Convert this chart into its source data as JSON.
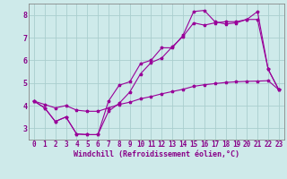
{
  "xlabel": "Windchill (Refroidissement éolien,°C)",
  "background_color": "#ceeaea",
  "grid_color": "#aacece",
  "line_color": "#990099",
  "line1_x": [
    0,
    1,
    2,
    3,
    4,
    5,
    6,
    7,
    8,
    9,
    10,
    11,
    12,
    13,
    14,
    15,
    16,
    17,
    18,
    19,
    20,
    21,
    22,
    23
  ],
  "line1_y": [
    4.2,
    3.9,
    3.3,
    3.5,
    2.75,
    2.72,
    2.72,
    4.2,
    4.9,
    5.05,
    5.85,
    6.0,
    6.55,
    6.55,
    7.1,
    8.15,
    8.2,
    7.7,
    7.6,
    7.65,
    7.8,
    8.15,
    5.6,
    4.7
  ],
  "line2_x": [
    0,
    1,
    2,
    3,
    4,
    5,
    6,
    7,
    8,
    9,
    10,
    11,
    12,
    13,
    14,
    15,
    16,
    17,
    18,
    19,
    20,
    21,
    22,
    23
  ],
  "line2_y": [
    4.2,
    3.9,
    3.3,
    3.5,
    2.75,
    2.72,
    2.72,
    3.75,
    4.1,
    4.6,
    5.4,
    5.9,
    6.1,
    6.6,
    7.05,
    7.65,
    7.55,
    7.65,
    7.7,
    7.7,
    7.8,
    7.8,
    5.6,
    4.7
  ],
  "line3_x": [
    0,
    1,
    2,
    3,
    4,
    5,
    6,
    7,
    8,
    9,
    10,
    11,
    12,
    13,
    14,
    15,
    16,
    17,
    18,
    19,
    20,
    21,
    22,
    23
  ],
  "line3_y": [
    4.2,
    4.05,
    3.9,
    4.0,
    3.8,
    3.75,
    3.75,
    3.9,
    4.05,
    4.15,
    4.3,
    4.4,
    4.52,
    4.62,
    4.72,
    4.85,
    4.92,
    4.97,
    5.02,
    5.05,
    5.07,
    5.08,
    5.1,
    4.7
  ],
  "xlim": [
    -0.5,
    23.5
  ],
  "ylim": [
    2.5,
    8.5
  ],
  "yticks": [
    3,
    4,
    5,
    6,
    7,
    8
  ],
  "xticks": [
    0,
    1,
    2,
    3,
    4,
    5,
    6,
    7,
    8,
    9,
    10,
    11,
    12,
    13,
    14,
    15,
    16,
    17,
    18,
    19,
    20,
    21,
    22,
    23
  ],
  "marker": "*",
  "markersize": 2.5,
  "linewidth": 0.8,
  "tick_fontsize": 5.5,
  "xlabel_fontsize": 6.0
}
